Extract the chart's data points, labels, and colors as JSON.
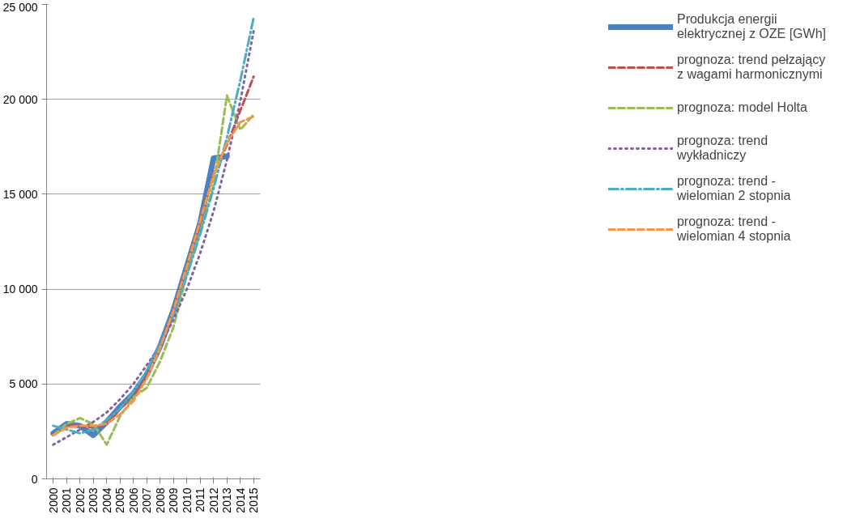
{
  "chart_data": {
    "type": "line",
    "categories": [
      "2000",
      "2001",
      "2002",
      "2003",
      "2004",
      "2005",
      "2006",
      "2007",
      "2008",
      "2009",
      "2010",
      "2011",
      "2012",
      "2013",
      "2014",
      "2015"
    ],
    "ylim": [
      0,
      25000
    ],
    "yticks": [
      {
        "value": 0,
        "label": "0"
      },
      {
        "value": 5000,
        "label": "5 000"
      },
      {
        "value": 10000,
        "label": "10 000"
      },
      {
        "value": 15000,
        "label": "15 000"
      },
      {
        "value": 20000,
        "label": "20 000"
      },
      {
        "value": 25000,
        "label": "25 000"
      }
    ],
    "grid": "y",
    "legend": "right",
    "series": [
      {
        "name": "Produkcja energii elektrycznej z OZE [GWh]",
        "color": "#4f81bd",
        "line_style": "solid",
        "values": [
          2400,
          2900,
          2800,
          2300,
          3000,
          3800,
          4500,
          5500,
          7000,
          8900,
          11200,
          13500,
          16900,
          17000,
          null,
          null
        ]
      },
      {
        "name": "prognoza: trend pełzający z wagami harmonicznymi",
        "color": "#c0504d",
        "line_style": "dashed",
        "values": [
          2300,
          2800,
          2800,
          2700,
          2900,
          3700,
          4300,
          5400,
          6900,
          8900,
          11200,
          13600,
          16000,
          17600,
          19400,
          21200
        ]
      },
      {
        "name": "prognoza: model Holta",
        "color": "#9bbb59",
        "line_style": "dashed",
        "values": [
          2300,
          2900,
          3200,
          2900,
          1800,
          3300,
          4300,
          4800,
          6200,
          8000,
          10800,
          13000,
          15500,
          20200,
          18400,
          19200
        ]
      },
      {
        "name": "prognoza: trend wykładniczy",
        "color": "#8064a2",
        "line_style": "dotted",
        "values": [
          1800,
          2200,
          2600,
          3000,
          3500,
          4200,
          5000,
          6000,
          7000,
          8400,
          10000,
          11900,
          14100,
          16800,
          19900,
          23600
        ]
      },
      {
        "name": "prognoza: trend - wielomian 2 stopnia",
        "color": "#4bacc6",
        "line_style": "dashdot",
        "values": [
          2800,
          2600,
          2400,
          2600,
          3100,
          3700,
          4600,
          5700,
          7100,
          8700,
          10700,
          12900,
          15300,
          18000,
          21000,
          24300
        ]
      },
      {
        "name": "prognoza: trend - wielomian 4 stopnia",
        "color": "#f79646",
        "line_style": "dashed",
        "values": [
          2300,
          2700,
          2800,
          2800,
          2900,
          3400,
          4100,
          5300,
          6900,
          8900,
          11200,
          13600,
          16000,
          17700,
          18800,
          19100
        ]
      }
    ]
  }
}
